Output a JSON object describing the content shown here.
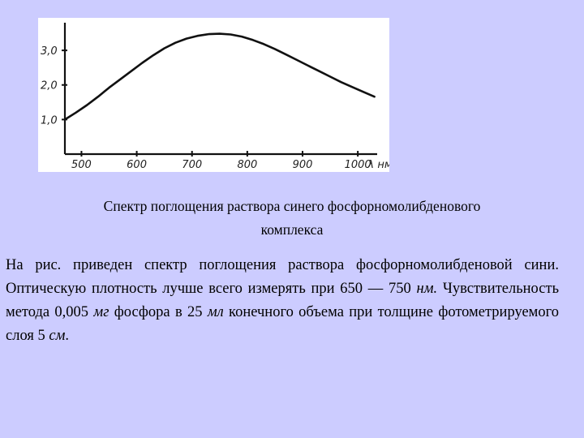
{
  "chart_data": {
    "type": "line",
    "x": [
      470,
      490,
      510,
      530,
      550,
      570,
      590,
      610,
      630,
      650,
      670,
      690,
      710,
      730,
      750,
      770,
      790,
      810,
      830,
      850,
      870,
      890,
      910,
      930,
      950,
      970,
      990,
      1010,
      1030
    ],
    "series": [
      {
        "values": [
          1.0,
          1.2,
          1.42,
          1.66,
          1.92,
          2.16,
          2.4,
          2.64,
          2.86,
          3.06,
          3.22,
          3.34,
          3.42,
          3.47,
          3.48,
          3.46,
          3.4,
          3.3,
          3.18,
          3.04,
          2.88,
          2.72,
          2.56,
          2.4,
          2.24,
          2.08,
          1.94,
          1.8,
          1.66
        ]
      }
    ],
    "xticks": [
      "500",
      "600",
      "700",
      "800",
      "900",
      "1000"
    ],
    "xtick_values": [
      500,
      600,
      700,
      800,
      900,
      1000
    ],
    "yticks": [
      "1,0",
      "2,0",
      "3,0"
    ],
    "ytick_values": [
      1,
      2,
      3
    ],
    "xlabel": "λ",
    "xunit": "нм",
    "xlim": [
      470,
      1035
    ],
    "ylim": [
      0,
      3.8
    ],
    "grid": false,
    "color": "#111111"
  },
  "caption": {
    "line1": "Спектр поглощения раствора синего фосфорномолибденового",
    "line2": "комплекса"
  },
  "body": {
    "part1": "На рис. приведен спектр поглощения раствора фосфорномолибденовой сини. Оптическую плотность лучше всего измерять при 650 — 750 ",
    "unit1": "нм.",
    "part2": " Чувствительность метода 0,005 ",
    "unit2": "мг",
    "part3": " фосфора в 25 ",
    "unit3": "мл",
    "part4": " конечного объема при толщине фотометрируемого слоя 5 ",
    "unit4": "см",
    "part5": "."
  },
  "colors": {
    "background": "#ccccff",
    "figure_background": "#ffffff"
  }
}
